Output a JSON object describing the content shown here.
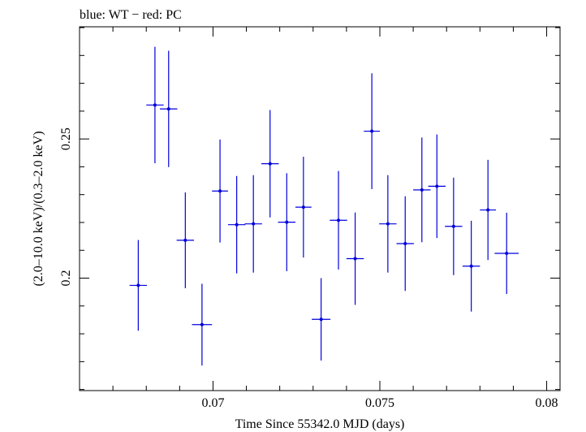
{
  "header": {
    "title": "blue: WT − red: PC"
  },
  "colors": {
    "series": "#0000dd",
    "axis": "#000000"
  },
  "chart_data": {
    "type": "scatter",
    "title": "blue: WT − red: PC",
    "xlabel": "Time Since 55342.0 MJD (days)",
    "ylabel": "(2.0–10.0 keV)/(0.3–2.0 keV)",
    "xlim": [
      0.066,
      0.0804
    ],
    "ylim": [
      0.1596,
      0.2903
    ],
    "x_major_ticks": [
      0.07,
      0.075,
      0.08
    ],
    "x_tick_labels": [
      "0.07",
      "0.075",
      "0.08"
    ],
    "y_major_ticks": [
      0.2,
      0.25
    ],
    "y_tick_labels": [
      "0.2",
      "0.25"
    ],
    "grid": false,
    "series": [
      {
        "points": [
          {
            "x": 0.06776,
            "xerr": 0.00026,
            "y": 0.1974,
            "yerr": 0.0163
          },
          {
            "x": 0.06826,
            "xerr": 0.00026,
            "y": 0.2622,
            "yerr": 0.0209
          },
          {
            "x": 0.06867,
            "xerr": 0.00026,
            "y": 0.2608,
            "yerr": 0.0209
          },
          {
            "x": 0.06917,
            "xerr": 0.00026,
            "y": 0.2136,
            "yerr": 0.0172
          },
          {
            "x": 0.06967,
            "xerr": 0.0003,
            "y": 0.1833,
            "yerr": 0.0147
          },
          {
            "x": 0.07021,
            "xerr": 0.00024,
            "y": 0.2313,
            "yerr": 0.0185
          },
          {
            "x": 0.07071,
            "xerr": 0.00026,
            "y": 0.2192,
            "yerr": 0.0175
          },
          {
            "x": 0.07121,
            "xerr": 0.00026,
            "y": 0.2195,
            "yerr": 0.0175
          },
          {
            "x": 0.07171,
            "xerr": 0.00026,
            "y": 0.2411,
            "yerr": 0.0193
          },
          {
            "x": 0.07221,
            "xerr": 0.00026,
            "y": 0.2201,
            "yerr": 0.0176
          },
          {
            "x": 0.07271,
            "xerr": 0.00024,
            "y": 0.2255,
            "yerr": 0.0181
          },
          {
            "x": 0.07324,
            "xerr": 0.00028,
            "y": 0.1852,
            "yerr": 0.0148
          },
          {
            "x": 0.07376,
            "xerr": 0.00026,
            "y": 0.2208,
            "yerr": 0.0177
          },
          {
            "x": 0.07426,
            "xerr": 0.00026,
            "y": 0.207,
            "yerr": 0.0166
          },
          {
            "x": 0.07476,
            "xerr": 0.00024,
            "y": 0.2528,
            "yerr": 0.0208
          },
          {
            "x": 0.07524,
            "xerr": 0.00026,
            "y": 0.2195,
            "yerr": 0.0175
          },
          {
            "x": 0.07576,
            "xerr": 0.00026,
            "y": 0.2124,
            "yerr": 0.017
          },
          {
            "x": 0.07626,
            "xerr": 0.00026,
            "y": 0.2317,
            "yerr": 0.0188
          },
          {
            "x": 0.07671,
            "xerr": 0.00026,
            "y": 0.233,
            "yerr": 0.0186
          },
          {
            "x": 0.07721,
            "xerr": 0.00026,
            "y": 0.2186,
            "yerr": 0.0175
          },
          {
            "x": 0.07774,
            "xerr": 0.00026,
            "y": 0.2043,
            "yerr": 0.0163
          },
          {
            "x": 0.07824,
            "xerr": 0.00024,
            "y": 0.2245,
            "yerr": 0.018
          },
          {
            "x": 0.0788,
            "xerr": 0.00036,
            "y": 0.2089,
            "yerr": 0.0146
          }
        ]
      }
    ]
  }
}
